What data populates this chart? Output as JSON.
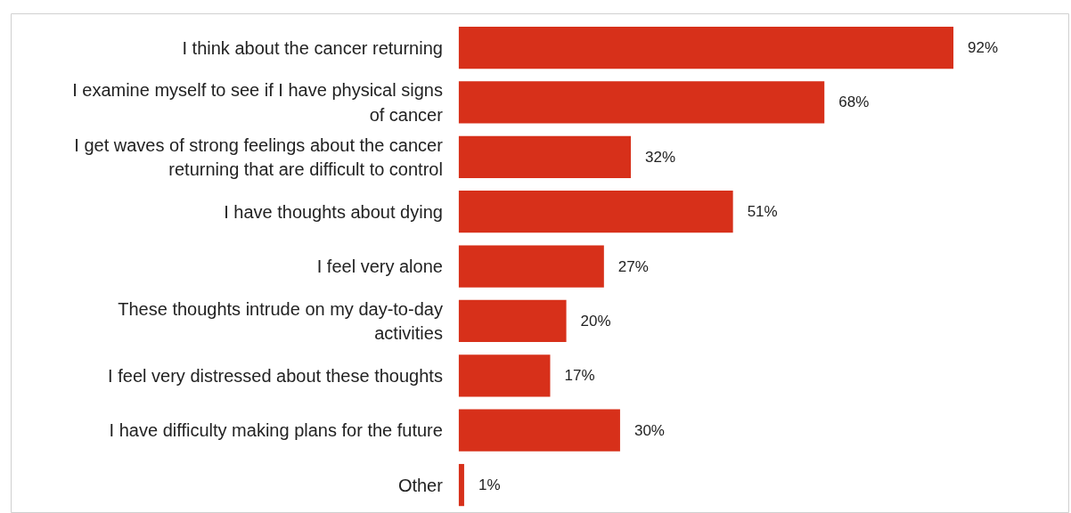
{
  "chart_data": {
    "type": "bar",
    "orientation": "horizontal",
    "color": "#d7301a",
    "categories": [
      "I think about the cancer returning",
      "I examine myself to see if I have physical signs of cancer",
      "I get waves of strong feelings about the cancer returning that are difficult to control",
      "I have thoughts about dying",
      "I feel very alone",
      "These thoughts intrude on my day-to-day activities",
      "I feel very distressed about these thoughts",
      "I have difficulty making plans for the future",
      "Other"
    ],
    "values": [
      92,
      68,
      32,
      51,
      27,
      20,
      17,
      30,
      1
    ],
    "value_labels": [
      "92%",
      "68%",
      "32%",
      "51%",
      "27%",
      "20%",
      "17%",
      "30%",
      "1%"
    ],
    "grid": false
  }
}
